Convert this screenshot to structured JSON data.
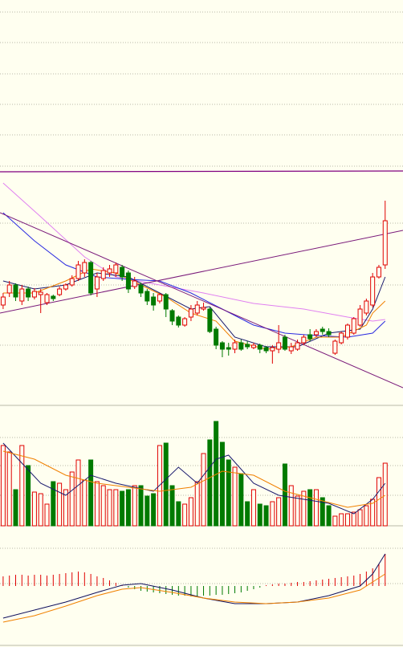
{
  "chart_data": [
    {
      "type": "candlestick",
      "xlim": [
        -0.5,
        63.85
      ],
      "ylim": [
        0,
        290
      ],
      "up_color": "#e00000",
      "down_color": "#007a00",
      "open": [
        125,
        140,
        150,
        130,
        145,
        135,
        138,
        128,
        136,
        138,
        145,
        150,
        158,
        165,
        178,
        145,
        158,
        165,
        165,
        172,
        165,
        148,
        150,
        142,
        135,
        130,
        138,
        118,
        110,
        100,
        110,
        115,
        120,
        120,
        95,
        78,
        72,
        70,
        78,
        76,
        72,
        75,
        72,
        68,
        70,
        85,
        68,
        70,
        78,
        88,
        88,
        95,
        92,
        65,
        78,
        85,
        90,
        100,
        115,
        125,
        160,
        175
      ],
      "high": [
        140,
        155,
        152,
        150,
        148,
        146,
        145,
        140,
        138,
        148,
        152,
        162,
        180,
        182,
        180,
        165,
        172,
        175,
        178,
        175,
        168,
        160,
        153,
        145,
        140,
        140,
        140,
        120,
        112,
        110,
        125,
        130,
        128,
        122,
        98,
        80,
        78,
        82,
        82,
        80,
        78,
        77,
        74,
        75,
        100,
        88,
        78,
        82,
        88,
        95,
        95,
        98,
        96,
        82,
        92,
        102,
        110,
        125,
        133,
        165,
        175,
        255
      ],
      "low": [
        120,
        135,
        130,
        125,
        130,
        132,
        115,
        125,
        130,
        136,
        143,
        148,
        155,
        160,
        137,
        135,
        155,
        160,
        160,
        155,
        140,
        145,
        135,
        125,
        118,
        127,
        110,
        100,
        97,
        98,
        105,
        112,
        118,
        90,
        70,
        60,
        62,
        65,
        68,
        70,
        70,
        65,
        65,
        52,
        65,
        68,
        64,
        68,
        75,
        80,
        85,
        88,
        85,
        63,
        76,
        82,
        88,
        98,
        112,
        122,
        158,
        170
      ],
      "close": [
        135,
        150,
        135,
        145,
        135,
        142,
        141,
        138,
        133,
        145,
        150,
        158,
        175,
        178,
        140,
        160,
        168,
        170,
        175,
        160,
        145,
        155,
        140,
        130,
        125,
        138,
        120,
        105,
        100,
        108,
        120,
        125,
        122,
        92,
        75,
        70,
        70,
        78,
        70,
        73,
        75,
        70,
        68,
        72,
        78,
        70,
        73,
        78,
        85,
        83,
        92,
        92,
        88,
        80,
        90,
        100,
        108,
        120,
        130,
        160,
        172,
        230
      ],
      "series": [
        {
          "color": "#e080f0",
          "x": [
            0,
            6,
            13,
            18,
            25,
            32,
            40,
            48,
            55,
            59,
            61
          ],
          "values": [
            277,
            235,
            185,
            160,
            150,
            140,
            127,
            120,
            110,
            105,
            107
          ]
        },
        {
          "color": "#2a2ae0",
          "x": [
            0,
            5,
            10,
            15,
            20,
            25,
            30,
            35,
            40,
            45,
            50,
            55,
            59,
            61
          ],
          "values": [
            240,
            205,
            175,
            160,
            157,
            155,
            140,
            120,
            100,
            90,
            87,
            85,
            90,
            105
          ]
        },
        {
          "color": "#1a1a6e",
          "x": [
            0,
            5,
            10,
            15,
            20,
            25,
            30,
            33,
            37,
            42,
            47,
            52,
            57,
            59,
            61
          ],
          "values": [
            155,
            145,
            150,
            165,
            160,
            140,
            120,
            123,
            85,
            73,
            73,
            90,
            95,
            120,
            160
          ]
        },
        {
          "color": "#f08000",
          "x": [
            0,
            5,
            10,
            14,
            18,
            22,
            26,
            30,
            34,
            37,
            42,
            46,
            50,
            54,
            58,
            59,
            61
          ],
          "values": [
            140,
            140,
            155,
            170,
            165,
            150,
            135,
            115,
            105,
            80,
            70,
            73,
            85,
            85,
            100,
            115,
            130
          ]
        },
        {
          "color": "#7a1a7a",
          "x": [
            -0.5,
            63.85
          ],
          "values": [
            240,
            22
          ]
        },
        {
          "color": "#7a1a7a",
          "x": [
            -0.5,
            63.85
          ],
          "values": [
            115,
            218
          ]
        }
      ]
    },
    {
      "type": "volume",
      "xlim": [
        -0.5,
        63.85
      ],
      "ylim": [
        0,
        150
      ],
      "values": [
        100,
        92,
        45,
        100,
        75,
        42,
        40,
        27,
        55,
        53,
        45,
        67,
        82,
        57,
        82,
        55,
        50,
        45,
        45,
        43,
        45,
        50,
        50,
        37,
        40,
        100,
        103,
        50,
        30,
        27,
        35,
        55,
        90,
        107,
        130,
        104,
        82,
        73,
        65,
        30,
        45,
        27,
        25,
        30,
        35,
        77,
        50,
        37,
        43,
        45,
        45,
        35,
        25,
        12,
        15,
        15,
        17,
        20,
        25,
        33,
        60,
        78
      ],
      "series": [
        {
          "color": "#1a1a6e",
          "x": [
            0,
            3,
            6,
            10,
            14,
            18,
            24,
            28,
            31,
            34,
            36,
            40,
            44,
            48,
            52,
            56,
            59,
            61
          ],
          "values": [
            103,
            78,
            53,
            38,
            63,
            53,
            43,
            73,
            53,
            83,
            88,
            53,
            38,
            33,
            28,
            15,
            33,
            53
          ]
        },
        {
          "color": "#f08000",
          "x": [
            0,
            5,
            10,
            15,
            20,
            25,
            30,
            35,
            40,
            45,
            50,
            55,
            59,
            61
          ],
          "values": [
            93,
            83,
            63,
            53,
            48,
            43,
            48,
            68,
            63,
            43,
            33,
            23,
            28,
            38
          ]
        }
      ]
    },
    {
      "type": "macd",
      "xlim": [
        -0.5,
        63.85
      ],
      "ylim": [
        -75,
        75
      ],
      "up_color": "#e00000",
      "down_color": "#007a00",
      "values": [
        12,
        13,
        14,
        14,
        13,
        14,
        14,
        13,
        14,
        15,
        16,
        17,
        18,
        17,
        15,
        12,
        10,
        7,
        4,
        1,
        -2,
        -4,
        -6,
        -7,
        -8,
        -9,
        -10,
        -11,
        -12,
        -12,
        -13,
        -13,
        -12,
        -12,
        -11,
        -11,
        -10,
        -9,
        -8,
        -6,
        -4,
        -2,
        1,
        2,
        3,
        3,
        4,
        5,
        5,
        6,
        7,
        8,
        9,
        10,
        11,
        12,
        13,
        15,
        18,
        22,
        28,
        40
      ],
      "series": [
        {
          "color": "#10105e",
          "x": [
            0,
            5,
            10,
            15,
            19,
            22,
            27,
            32,
            37,
            42,
            47,
            52,
            57,
            59,
            61
          ],
          "values": [
            -40,
            -30,
            -20,
            -8,
            1,
            3,
            -5,
            -15,
            -22,
            -22,
            -20,
            -12,
            0,
            15,
            40
          ]
        },
        {
          "color": "#f08000",
          "x": [
            0,
            5,
            10,
            15,
            19,
            22,
            27,
            32,
            37,
            42,
            47,
            52,
            57,
            59,
            61
          ],
          "values": [
            -45,
            -37,
            -25,
            -12,
            -4,
            -2,
            -8,
            -15,
            -20,
            -22,
            -20,
            -15,
            -5,
            5,
            15
          ]
        }
      ]
    }
  ]
}
